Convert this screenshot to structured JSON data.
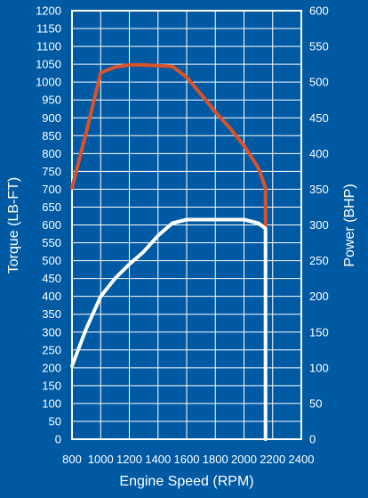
{
  "chart_data": {
    "type": "line",
    "xlabel": "Engine Speed (RPM)",
    "ylabel_left": "Torque (LB-FT)",
    "ylabel_right": "Power (BHP)",
    "x_ticks": [
      "800",
      "1000",
      "1200",
      "1400",
      "1600",
      "1800",
      "2000",
      "2200",
      "2400"
    ],
    "x_tick_values": [
      800,
      1000,
      1200,
      1400,
      1600,
      1800,
      2000,
      2200,
      2400
    ],
    "xlim": [
      800,
      2400
    ],
    "y_left_ticks": [
      "0",
      "50",
      "100",
      "150",
      "200",
      "250",
      "300",
      "350",
      "400",
      "450",
      "500",
      "550",
      "600",
      "650",
      "700",
      "750",
      "800",
      "850",
      "900",
      "950",
      "1000",
      "1050",
      "1100",
      "1150",
      "1200"
    ],
    "y_left_tick_values": [
      0,
      50,
      100,
      150,
      200,
      250,
      300,
      350,
      400,
      450,
      500,
      550,
      600,
      650,
      700,
      750,
      800,
      850,
      900,
      950,
      1000,
      1050,
      1100,
      1150,
      1200
    ],
    "ylim_left": [
      0,
      1200
    ],
    "y_right_ticks": [
      "0",
      "50",
      "100",
      "150",
      "200",
      "250",
      "300",
      "350",
      "400",
      "450",
      "500",
      "550",
      "600"
    ],
    "y_right_tick_values": [
      0,
      50,
      100,
      150,
      200,
      250,
      300,
      350,
      400,
      450,
      500,
      550,
      600
    ],
    "ylim_right": [
      0,
      600
    ],
    "grid": true,
    "series": [
      {
        "axis": "right",
        "color": "#d9522a",
        "x": [
          800,
          900,
          1000,
          1100,
          1200,
          1300,
          1400,
          1500,
          1600,
          1700,
          1800,
          1900,
          2000,
          2100,
          2150,
          2150
        ],
        "values": [
          352,
          430,
          513,
          521,
          524,
          524,
          523,
          522,
          507,
          483,
          458,
          436,
          411,
          380,
          352,
          295
        ]
      },
      {
        "axis": "left",
        "color": "#ffffff",
        "x": [
          800,
          900,
          1000,
          1100,
          1200,
          1300,
          1400,
          1500,
          1600,
          1700,
          1800,
          1900,
          2000,
          2100,
          2150,
          2150
        ],
        "values": [
          205,
          310,
          400,
          450,
          490,
          525,
          570,
          605,
          615,
          615,
          615,
          615,
          615,
          605,
          590,
          0
        ]
      }
    ]
  }
}
